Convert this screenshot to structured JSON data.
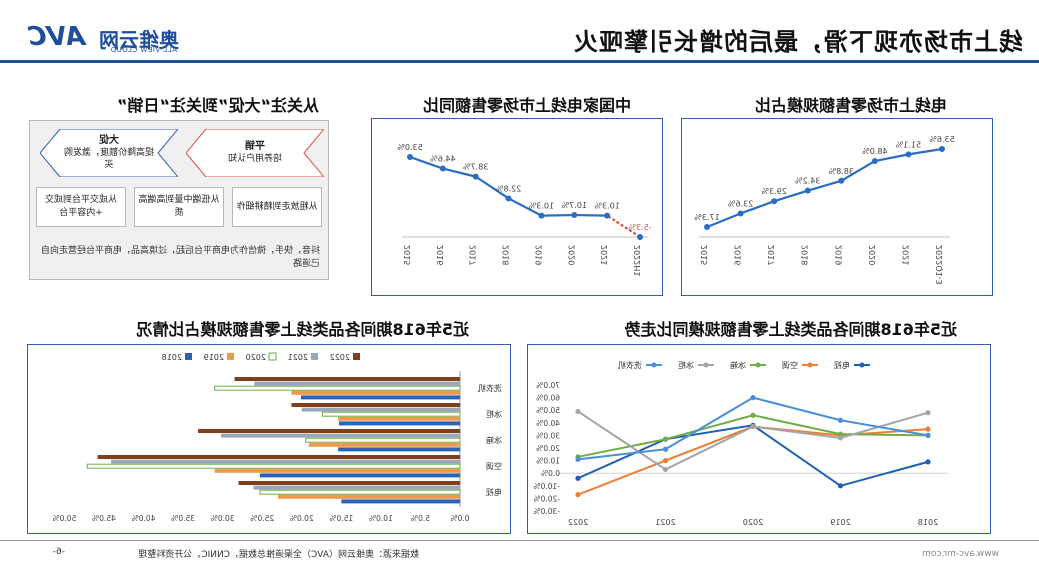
{
  "header": {
    "title": "线上市场亦现下滑，最后的增长引擎哑火",
    "logo_cn": "奥维云网",
    "logo_en": "ALL VIEW CLOUD",
    "logo_brand": "AVC"
  },
  "colors": {
    "accent": "#1f4e9c",
    "line_blue": "#2b6cc4",
    "red_dash": "#d9534f"
  },
  "panels": {
    "share_title": "电线上市场零售额规模占比",
    "yoy_title": "中国家电线上市场零售额同比",
    "flow_title": "从关注“大促”到关注“日销”",
    "trend_title": "近5年618期间各品类线上零售额规模同比走势",
    "bar_title": "近5年618期间各品类线上零售额规模占比情况"
  },
  "flow": {
    "left_arrow_head": "大促",
    "left_arrow_body": "提高降价额度，激发购买",
    "right_arrow_head": "平销",
    "right_arrow_body": "培养用户认知",
    "strategies": [
      "从粗放走到精耕细作",
      "从低端中量到高端高质",
      "从成交平台到成交+内容平台"
    ],
    "note": "抖音，快手，微信作为电商平台后起，过境高品，电商平台经营走向自己道路"
  },
  "chart_data": [
    {
      "type": "line",
      "title": "电线上市场零售额规模占比",
      "categories": [
        "2022Q1-3",
        "2021",
        "2020",
        "2019",
        "2018",
        "2017",
        "2016",
        "2015"
      ],
      "values": [
        53.6,
        51.1,
        48.0,
        38.8,
        34.2,
        29.3,
        23.6,
        17.3
      ],
      "value_labels": [
        "53.6%",
        "51.1%",
        "48.0%",
        "38.8%",
        "34.2%",
        "29.3%",
        "23.6%",
        "17.3%"
      ],
      "grid": false
    },
    {
      "type": "line",
      "title": "中国家电线上市场零售额同比",
      "categories": [
        "2022H1",
        "2021",
        "2020",
        "2019",
        "2018",
        "2017",
        "2016",
        "2015"
      ],
      "values": [
        -5.3,
        10.3,
        10.7,
        10.3,
        22.8,
        38.7,
        44.6,
        53.0
      ],
      "value_labels": [
        "-5.3%",
        "10.3%",
        "10.7%",
        "10.3%",
        "22.8%",
        "38.7%",
        "44.6%",
        "53.0%"
      ],
      "grid": false
    },
    {
      "type": "line",
      "title": "近5年618期间各品类线上零售额规模同比走势",
      "categories": [
        "2018",
        "2019",
        "2020",
        "2021",
        "2022"
      ],
      "ylim": [
        -30,
        70
      ],
      "yticks": [
        "70.0%",
        "60.0%",
        "50.0%",
        "40.0%",
        "30.0%",
        "20.0%",
        "10.0%",
        "0.0%",
        "-10.0%",
        "-20.0%",
        "-30.0%"
      ],
      "series": [
        {
          "name": "电视",
          "color": "#1f5fb4",
          "values": [
            9,
            -10,
            38,
            27,
            -4
          ]
        },
        {
          "name": "空调",
          "color": "#ed7d31",
          "values": [
            35,
            30,
            37,
            10,
            -17
          ]
        },
        {
          "name": "冰箱",
          "color": "#70ad47",
          "values": [
            30,
            31,
            46,
            27,
            13
          ]
        },
        {
          "name": "冰柜",
          "color": "#a5a5a5",
          "values": [
            48,
            28,
            37,
            3,
            49
          ]
        },
        {
          "name": "洗衣机",
          "color": "#4a90d9",
          "values": [
            30,
            42,
            60,
            19,
            11
          ]
        }
      ],
      "legend_position": "top-left"
    },
    {
      "type": "bar",
      "title": "近5年618期间各品类线上零售额规模占比情况",
      "categories": [
        "洗衣机",
        "冰柜",
        "冰箱",
        "空调",
        "电视"
      ],
      "xlim": [
        0,
        50
      ],
      "xticks": [
        "0.0%",
        "5.0%",
        "10.0%",
        "15.0%",
        "20.0%",
        "25.0%",
        "30.0%",
        "35.0%",
        "40.0%",
        "45.0%",
        "50.0%"
      ],
      "series": [
        {
          "name": "2022",
          "color": "#7f3f1a",
          "values": [
            28.5,
            21.3,
            33.1,
            45.8,
            28.0
          ]
        },
        {
          "name": "2021",
          "color": "#9aa7b8",
          "values": [
            26.0,
            20.0,
            30.2,
            44.1,
            26.1
          ]
        },
        {
          "name": "2020",
          "color": "#ffffff",
          "stroke": "#70ad47",
          "values": [
            31.0,
            17.4,
            19.5,
            47.1,
            25.3
          ]
        },
        {
          "name": "2019",
          "color": "#ed9a4d",
          "values": [
            21.3,
            15.4,
            19.1,
            31.0,
            23.0
          ]
        },
        {
          "name": "2018",
          "color": "#2a62b8",
          "values": [
            20.1,
            15.3,
            15.4,
            25.3,
            15.0
          ]
        }
      ],
      "legend_position": "top"
    }
  ],
  "footer": {
    "page": "-6-",
    "source": "数据来源：奥维云网（AVC）全渠道推总数据，CNNIC，公开资料整理",
    "website": "www.avc-mr.com"
  }
}
